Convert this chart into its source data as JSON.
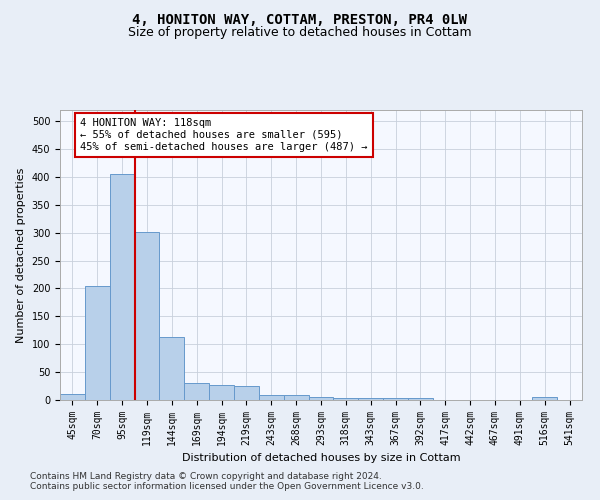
{
  "title": "4, HONITON WAY, COTTAM, PRESTON, PR4 0LW",
  "subtitle": "Size of property relative to detached houses in Cottam",
  "xlabel": "Distribution of detached houses by size in Cottam",
  "ylabel": "Number of detached properties",
  "footnote1": "Contains HM Land Registry data © Crown copyright and database right 2024.",
  "footnote2": "Contains public sector information licensed under the Open Government Licence v3.0.",
  "bin_labels": [
    "45sqm",
    "70sqm",
    "95sqm",
    "119sqm",
    "144sqm",
    "169sqm",
    "194sqm",
    "219sqm",
    "243sqm",
    "268sqm",
    "293sqm",
    "318sqm",
    "343sqm",
    "367sqm",
    "392sqm",
    "417sqm",
    "442sqm",
    "467sqm",
    "491sqm",
    "516sqm",
    "541sqm"
  ],
  "bar_values": [
    10,
    205,
    405,
    302,
    113,
    30,
    27,
    26,
    9,
    9,
    6,
    3,
    3,
    3,
    3,
    0,
    0,
    0,
    0,
    5,
    0
  ],
  "bar_color": "#b8d0ea",
  "bar_edge_color": "#6699cc",
  "vline_color": "#cc0000",
  "vline_x": 2.5,
  "annotation_text": "4 HONITON WAY: 118sqm\n← 55% of detached houses are smaller (595)\n45% of semi-detached houses are larger (487) →",
  "annotation_box_color": "#ffffff",
  "annotation_box_edge_color": "#cc0000",
  "title_fontsize": 10,
  "subtitle_fontsize": 9,
  "xlabel_fontsize": 8,
  "ylabel_fontsize": 8,
  "tick_fontsize": 7,
  "annotation_fontsize": 7.5,
  "footnote_fontsize": 6.5,
  "ylim": [
    0,
    520
  ],
  "yticks": [
    0,
    50,
    100,
    150,
    200,
    250,
    300,
    350,
    400,
    450,
    500
  ],
  "background_color": "#e8eef7",
  "plot_background_color": "#f5f8ff",
  "grid_color": "#c8d0dc"
}
